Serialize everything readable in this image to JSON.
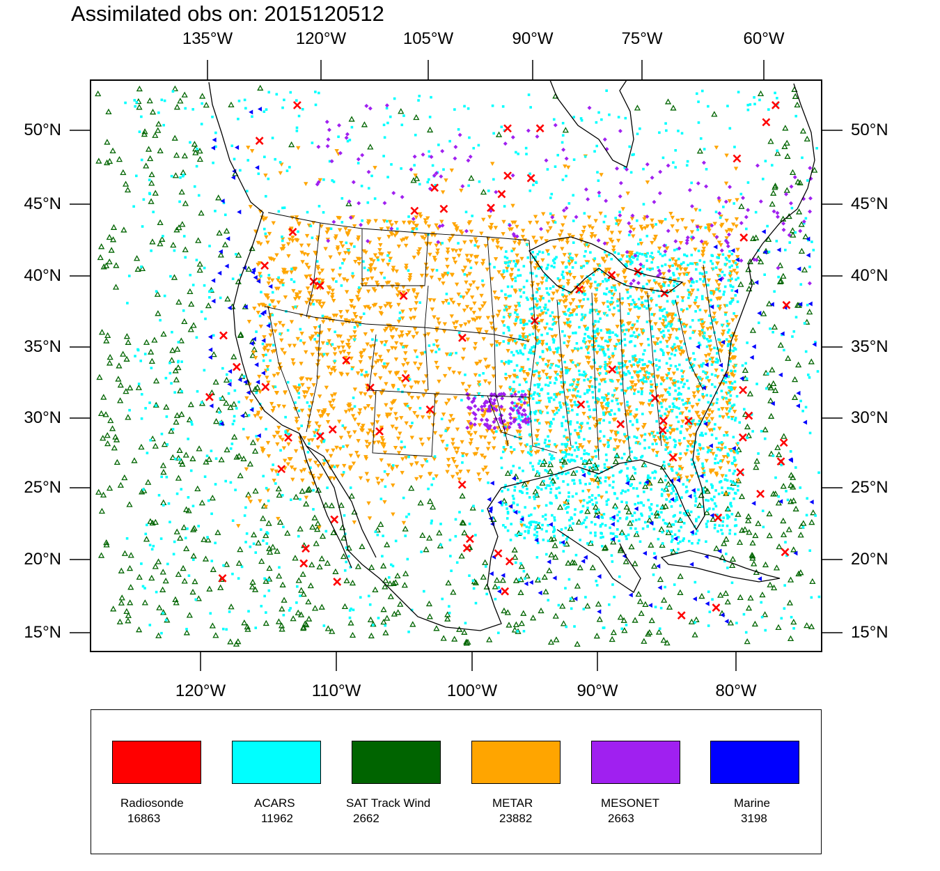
{
  "title": "Assimilated obs on: 2015120512",
  "map": {
    "top_lon_labels": [
      "135°W",
      "120°W",
      "105°W",
      "90°W",
      "75°W",
      "60°W"
    ],
    "bottom_lon_labels": [
      "120°W",
      "110°W",
      "100°W",
      "90°W",
      "80°W"
    ],
    "left_lat_labels": [
      "50°N",
      "45°N",
      "40°N",
      "35°N",
      "30°N",
      "25°N",
      "20°N",
      "15°N"
    ],
    "right_lat_labels": [
      "50°N",
      "45°N",
      "40°N",
      "35°N",
      "30°N",
      "25°N",
      "20°N",
      "15°N"
    ],
    "land_color": "#ffffff",
    "coastline_color": "#000000"
  },
  "legend": {
    "items": [
      {
        "name": "Radiosonde",
        "count": "16863",
        "color": "#ff0000",
        "marker": "x-mark"
      },
      {
        "name": "ACARS",
        "count": "11962",
        "color": "#00ffff",
        "marker": "square-dot"
      },
      {
        "name": "SAT Track Wind",
        "count": "2662",
        "color": "#006400",
        "marker": "triangle-up"
      },
      {
        "name": "METAR",
        "count": "23882",
        "color": "#ffa500",
        "marker": "triangle-down"
      },
      {
        "name": "MESONET",
        "count": "2663",
        "color": "#a020f0",
        "marker": "diamond"
      },
      {
        "name": "Marine",
        "count": "3198",
        "color": "#0000ff",
        "marker": "triangle-left"
      }
    ]
  }
}
